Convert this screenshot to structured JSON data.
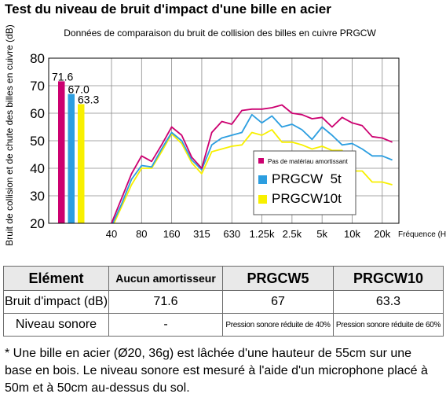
{
  "title": "Test du niveau de bruit d'impact d'une bille en acier",
  "chart_data": {
    "type": "line",
    "title": "Données de comparaison du bruit de collision des billes en cuivre PRGCW",
    "ylabel": "Bruit de collision et de chute des billes en cuivre (dB)",
    "xlabel": "Fréquence (Hz)",
    "ylim": [
      20,
      80
    ],
    "yticks": [
      20,
      30,
      40,
      50,
      60,
      70,
      80
    ],
    "xticks": [
      "40",
      "80",
      "160",
      "315",
      "630",
      "1.25k",
      "2.5k",
      "5k",
      "10k",
      "20k"
    ],
    "x": [
      "31.5",
      "40",
      "50",
      "63",
      "80",
      "100",
      "125",
      "160",
      "200",
      "250",
      "315",
      "400",
      "500",
      "630",
      "800",
      "1k",
      "1.25k",
      "1.6k",
      "2k",
      "2.5k",
      "3.15k",
      "4k",
      "5k",
      "6.3k",
      "8k",
      "10k",
      "12.5k",
      "16k",
      "20k",
      "25k"
    ],
    "legend_position": "right",
    "grid": true,
    "bars": [
      {
        "value": 71.6,
        "label": "71.6",
        "color": "#cc0070"
      },
      {
        "value": 67.0,
        "label": "67.0",
        "color": "#2c9ee0"
      },
      {
        "value": 63.3,
        "label": "63.3",
        "color": "#f8f000"
      }
    ],
    "series": [
      {
        "name": "Pas de matériau amortissant",
        "color": "#cc0070",
        "values": [
          16,
          20,
          29,
          38,
          44.5,
          42.5,
          48.5,
          55,
          52,
          44,
          40,
          53,
          57,
          56,
          61,
          61.5,
          61.5,
          62,
          63,
          60,
          59.5,
          58,
          58.5,
          55,
          58.5,
          56.5,
          55.5,
          51.5,
          51,
          49.5
        ]
      },
      {
        "name": "PRGCW  5t",
        "color": "#2c9ee0",
        "values": [
          14,
          19,
          27,
          36,
          41,
          40.5,
          47,
          53,
          50,
          43,
          39.5,
          48.5,
          51,
          52,
          53,
          59.5,
          56.5,
          59,
          55,
          56,
          54,
          50.5,
          55,
          52,
          48.5,
          49,
          47,
          44.5,
          44.5,
          43
        ]
      },
      {
        "name": "PRGCW10t",
        "color": "#f8f000",
        "values": [
          13,
          18,
          26,
          34,
          40,
          40,
          46,
          52.5,
          49,
          42,
          38,
          46,
          47,
          48,
          48.5,
          53,
          52,
          54,
          49.5,
          49.5,
          48.5,
          47,
          48,
          46.5,
          46.5,
          39,
          39,
          35,
          35,
          34
        ]
      }
    ]
  },
  "table": {
    "headers": [
      "Elément",
      "Aucun amortisseur",
      "PRGCW5",
      "PRGCW10"
    ],
    "rows": [
      [
        "Bruit d'impact (dB)",
        "71.6",
        "67",
        "63.3"
      ],
      [
        "Niveau sonore",
        "-",
        "Pression sonore réduite de 40%",
        "Pression sonore réduite de 60%"
      ]
    ]
  },
  "footnote": "* Une bille en acier (Ø20, 36g) est lâchée d'une hauteur de 55cm sur une base en bois. Le niveau sonore est mesuré à l'aide d'un microphone placé à 50m et à 50cm au-dessus du sol."
}
